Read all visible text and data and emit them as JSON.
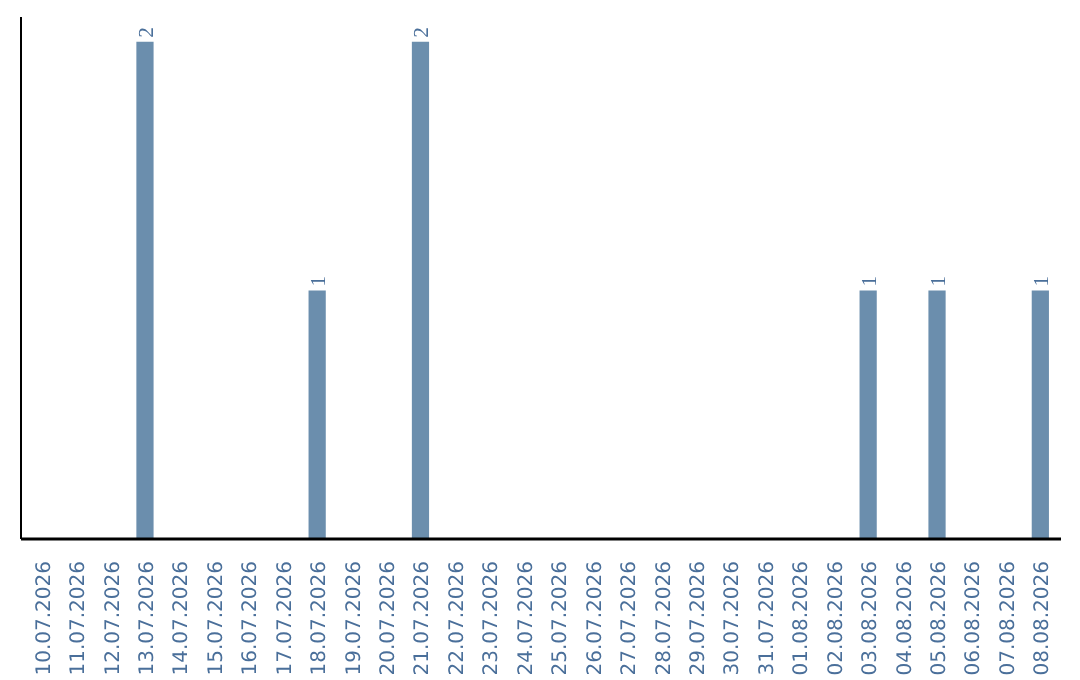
{
  "chart_data": {
    "type": "bar",
    "categories": [
      "10.07.2026",
      "11.07.2026",
      "12.07.2026",
      "13.07.2026",
      "14.07.2026",
      "15.07.2026",
      "16.07.2026",
      "17.07.2026",
      "18.07.2026",
      "19.07.2026",
      "20.07.2026",
      "21.07.2026",
      "22.07.2026",
      "23.07.2026",
      "24.07.2026",
      "25.07.2026",
      "26.07.2026",
      "27.07.2026",
      "28.07.2026",
      "29.07.2026",
      "30.07.2026",
      "31.07.2026",
      "01.08.2026",
      "02.08.2026",
      "03.08.2026",
      "04.08.2026",
      "05.08.2026",
      "06.08.2026",
      "07.08.2026",
      "08.08.2026"
    ],
    "values": [
      0,
      0,
      0,
      2,
      0,
      0,
      0,
      0,
      1,
      0,
      0,
      2,
      0,
      0,
      0,
      0,
      0,
      0,
      0,
      0,
      0,
      0,
      0,
      0,
      1,
      0,
      1,
      0,
      0,
      1
    ],
    "value_labels": [
      null,
      null,
      null,
      "2",
      null,
      null,
      null,
      null,
      "1",
      null,
      null,
      "2",
      null,
      null,
      null,
      null,
      null,
      null,
      null,
      null,
      null,
      null,
      null,
      null,
      "1",
      null,
      "1",
      null,
      null,
      "1"
    ],
    "color": "#6b8ead",
    "grid": false
  }
}
